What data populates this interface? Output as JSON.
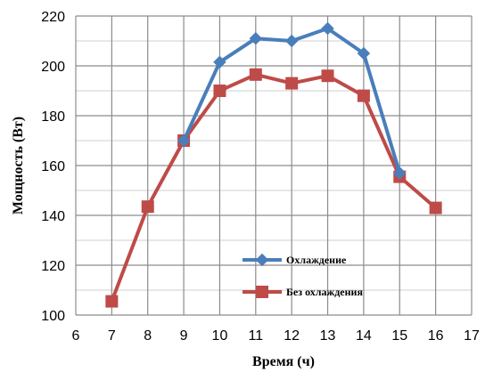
{
  "chart_data": {
    "type": "line",
    "xlabel": "Время (ч)",
    "ylabel": "Мощность (Вт)",
    "xlim": [
      6,
      17
    ],
    "ylim": [
      100,
      220
    ],
    "x_ticks": [
      6,
      7,
      8,
      9,
      10,
      11,
      12,
      13,
      14,
      15,
      16,
      17
    ],
    "y_ticks": [
      100,
      120,
      140,
      160,
      180,
      200,
      220
    ],
    "grid": true,
    "legend_position": "bottom-center",
    "series": [
      {
        "name": "Охлаждение",
        "color": "#4a7ebb",
        "marker": "diamond",
        "x": [
          9,
          10,
          11,
          12,
          13,
          14,
          15
        ],
        "y": [
          170,
          201.5,
          211,
          210,
          215,
          205,
          157
        ]
      },
      {
        "name": "Без охлаждения",
        "color": "#be4b48",
        "marker": "square",
        "x": [
          7,
          8,
          9,
          10,
          11,
          12,
          13,
          14,
          15,
          16
        ],
        "y": [
          105.5,
          143.5,
          170,
          190,
          196.5,
          193,
          196,
          188,
          155.5,
          143
        ]
      }
    ]
  }
}
